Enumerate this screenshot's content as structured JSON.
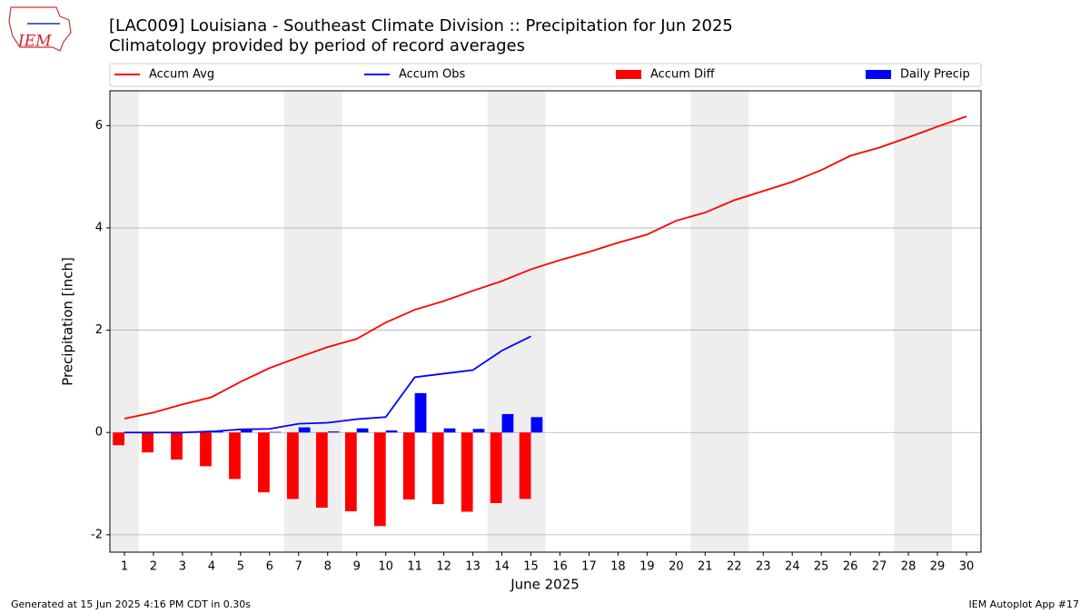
{
  "logo_text": "IEM",
  "footer_left": "Generated at 15 Jun 2025 4:16 PM CDT in 0.30s",
  "footer_right": "IEM Autoplot App #17",
  "chart_data": {
    "type": "line",
    "title": "[LAC009] Louisiana - Southeast Climate Division :: Precipitation for Jun 2025",
    "subtitle": "Climatology provided by period of record averages",
    "xlabel": "June 2025",
    "ylabel": "Precipitation [inch]",
    "x": [
      1,
      2,
      3,
      4,
      5,
      6,
      7,
      8,
      9,
      10,
      11,
      12,
      13,
      14,
      15,
      16,
      17,
      18,
      19,
      20,
      21,
      22,
      23,
      24,
      25,
      26,
      27,
      28,
      29,
      30
    ],
    "xlim": [
      0.5,
      30.5
    ],
    "xticks": [
      1,
      2,
      3,
      4,
      5,
      6,
      7,
      8,
      9,
      10,
      11,
      12,
      13,
      14,
      15,
      16,
      17,
      18,
      19,
      20,
      21,
      22,
      23,
      24,
      25,
      26,
      27,
      28,
      29,
      30
    ],
    "ylim": [
      -2.34,
      6.68
    ],
    "yticks": [
      -2,
      0,
      2,
      4,
      6
    ],
    "grid": true,
    "shaded_spans": [
      [
        0.5,
        1.5
      ],
      [
        6.5,
        8.5
      ],
      [
        13.5,
        15.5
      ],
      [
        20.5,
        22.5
      ],
      [
        27.5,
        29.5
      ]
    ],
    "shade_color": "#eeeeee",
    "series": [
      {
        "name": "Accum Avg",
        "type": "line",
        "color": "#ff0000",
        "values": [
          0.27,
          0.39,
          0.55,
          0.69,
          0.99,
          1.26,
          1.47,
          1.67,
          1.83,
          2.15,
          2.4,
          2.57,
          2.77,
          2.96,
          3.19,
          3.37,
          3.53,
          3.71,
          3.87,
          4.14,
          4.3,
          4.54,
          4.72,
          4.9,
          5.13,
          5.41,
          5.57,
          5.77,
          5.98,
          6.18
        ]
      },
      {
        "name": "Accum Obs",
        "type": "line",
        "color": "#0000ff",
        "values": [
          0,
          0,
          0,
          0.02,
          0.06,
          0.07,
          0.17,
          0.19,
          0.26,
          0.3,
          1.08,
          1.15,
          1.22,
          1.6,
          1.88,
          null,
          null,
          null,
          null,
          null,
          null,
          null,
          null,
          null,
          null,
          null,
          null,
          null,
          null,
          null
        ]
      },
      {
        "name": "Accum Diff",
        "type": "bar",
        "color": "#ff0000",
        "values": [
          -0.25,
          -0.39,
          -0.53,
          -0.66,
          -0.91,
          -1.17,
          -1.3,
          -1.47,
          -1.54,
          -1.83,
          -1.31,
          -1.4,
          -1.55,
          -1.38,
          -1.3,
          null,
          null,
          null,
          null,
          null,
          null,
          null,
          null,
          null,
          null,
          null,
          null,
          null,
          null,
          null
        ]
      },
      {
        "name": "Daily Precip",
        "type": "bar",
        "color": "#0000ff",
        "values": [
          0,
          0,
          0,
          0.02,
          0.05,
          0.01,
          0.1,
          0.02,
          0.08,
          0.04,
          0.77,
          0.08,
          0.07,
          0.36,
          0.3,
          null,
          null,
          null,
          null,
          null,
          null,
          null,
          null,
          null,
          null,
          null,
          null,
          null,
          null,
          null
        ]
      }
    ]
  }
}
